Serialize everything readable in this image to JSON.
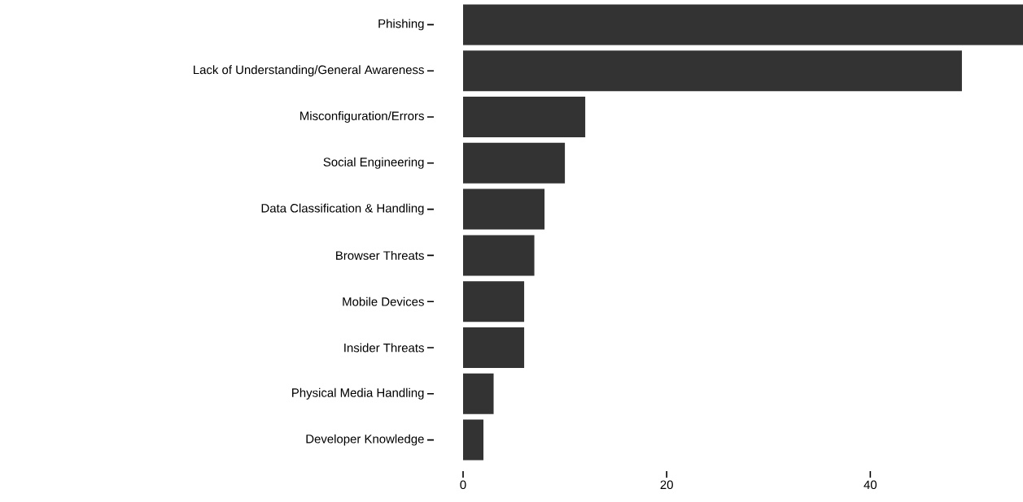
{
  "chart_data": {
    "type": "bar",
    "orientation": "horizontal",
    "categories": [
      "Phishing",
      "Lack of Understanding/General Awareness",
      "Misconfiguration/Errors",
      "Social Engineering",
      "Data Classification & Handling",
      "Browser Threats",
      "Mobile Devices",
      "Insider Threats",
      "Physical Media Handling",
      "Developer Knowledge"
    ],
    "values": [
      55,
      49,
      12,
      10,
      8,
      7,
      6,
      6,
      3,
      2
    ],
    "color": "#333333",
    "xlim": [
      0,
      55
    ],
    "xticks": [
      0,
      20,
      40
    ]
  }
}
